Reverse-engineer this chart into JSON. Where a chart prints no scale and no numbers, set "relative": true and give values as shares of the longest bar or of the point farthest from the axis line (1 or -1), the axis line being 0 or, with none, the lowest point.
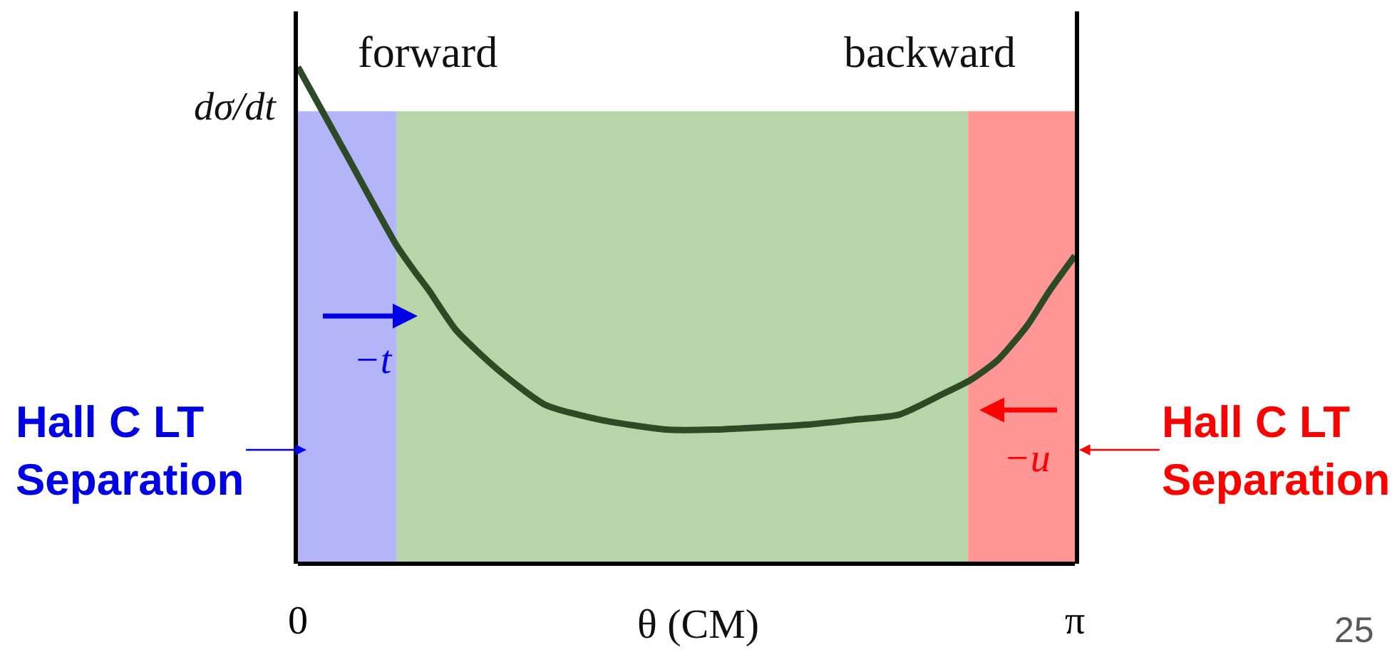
{
  "chart_data": {
    "type": "line",
    "relative": true,
    "xlabel": "θ (CM)",
    "ylabel": "dσ/dt",
    "x": [
      0,
      0.2,
      0.4,
      0.47,
      0.53,
      0.64,
      0.81,
      1.0,
      1.22,
      1.49,
      1.68,
      2.06,
      2.25,
      2.43,
      2.6,
      2.72,
      2.83,
      2.95,
      3.04,
      3.1416
    ],
    "series": [
      {
        "color": "#2d4a26",
        "values": [
          1,
          0.82,
          0.64,
          0.59,
          0.55,
          0.47,
          0.39,
          0.32,
          0.29,
          0.27,
          0.27,
          0.28,
          0.29,
          0.3,
          0.34,
          0.37,
          0.41,
          0.48,
          0.55,
          0.62
        ]
      }
    ],
    "xlim": [
      0,
      3.1416
    ],
    "xticks": [
      0,
      {
        "value": 3.1416,
        "label": "π"
      }
    ],
    "bands": [
      {
        "axis": "x",
        "from": 0,
        "to": 0.4,
        "color": "#b4b4f8",
        "label": "Hall C LT\nSeparation"
      },
      {
        "axis": "x",
        "from": 0.4,
        "to": 2.71,
        "color": "#b8d5aa"
      },
      {
        "axis": "x",
        "from": 2.71,
        "to": 3.1416,
        "color": "#ff9696",
        "label": "Hall C LT\nSeparation"
      }
    ],
    "annotations": [
      "forward",
      "backward",
      "−t",
      "−u",
      "25"
    ]
  }
}
